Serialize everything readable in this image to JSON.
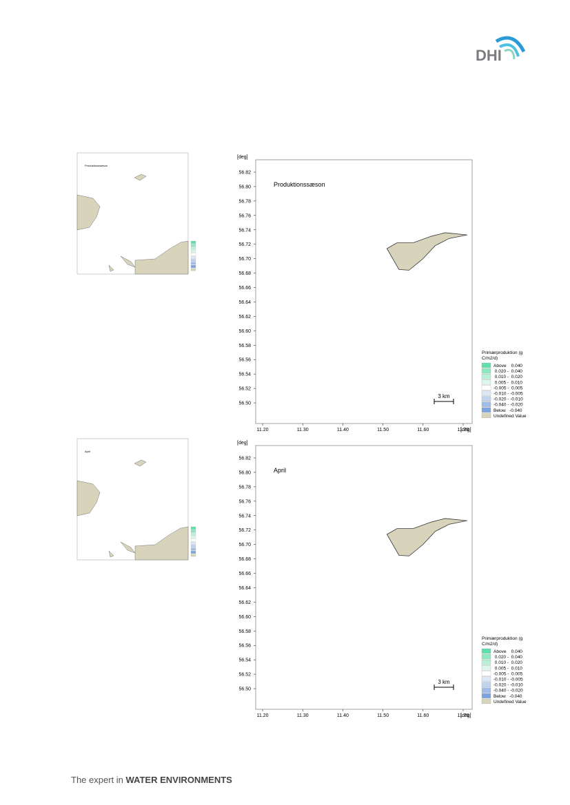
{
  "header": {
    "logo": "DHI"
  },
  "figures": [
    {
      "inset_title": "Produktionssæson",
      "title": "Produktionssæson",
      "y_label": "[deg]",
      "x_label": "[deg]",
      "yticks": [
        "56.82",
        "56.80",
        "56.78",
        "56.76",
        "56.74",
        "56.72",
        "56.70",
        "56.68",
        "56.66",
        "56.64",
        "56.62",
        "56.60",
        "56.58",
        "56.56",
        "56.54",
        "56.52",
        "56.50"
      ],
      "xticks": [
        "11.20",
        "11.30",
        "11.40",
        "11.50",
        "11.60",
        "11.70"
      ],
      "scale_label": "3 km",
      "legend_title": [
        "Primærproduktion (g",
        "C/m2/d)"
      ],
      "legend": [
        "Above    0.040",
        " 0.020 -  0.040",
        " 0.010 -  0.020",
        " 0.005 -  0.010",
        "-0.005 -  0.005",
        "-0.010 - -0.005",
        "-0.020 - -0.010",
        "-0.040 - -0.020",
        "Below   -0.040",
        "Undefined Value"
      ]
    },
    {
      "inset_title": "April",
      "title": "April",
      "y_label": "[deg]",
      "x_label": "[deg]",
      "yticks": [
        "56.82",
        "56.80",
        "56.78",
        "56.76",
        "56.74",
        "56.72",
        "56.70",
        "56.68",
        "56.66",
        "56.64",
        "56.62",
        "56.60",
        "56.58",
        "56.56",
        "56.54",
        "56.52",
        "56.50"
      ],
      "xticks": [
        "11.20",
        "11.30",
        "11.40",
        "11.50",
        "11.60",
        "11.70"
      ],
      "scale_label": "3 km",
      "legend_title": [
        "Primærproduktion (g",
        "C/m2/d)"
      ],
      "legend": [
        "Above    0.040",
        " 0.020 -  0.040",
        " 0.010 -  0.020",
        " 0.005 -  0.010",
        "-0.005 -  0.005",
        "-0.010 - -0.005",
        "-0.020 - -0.010",
        "-0.040 - -0.020",
        "Below   -0.040",
        "Undefined Value"
      ]
    }
  ],
  "footer": {
    "prefix": "The expert in ",
    "emphasis": "WATER ENVIRONMENTS"
  }
}
